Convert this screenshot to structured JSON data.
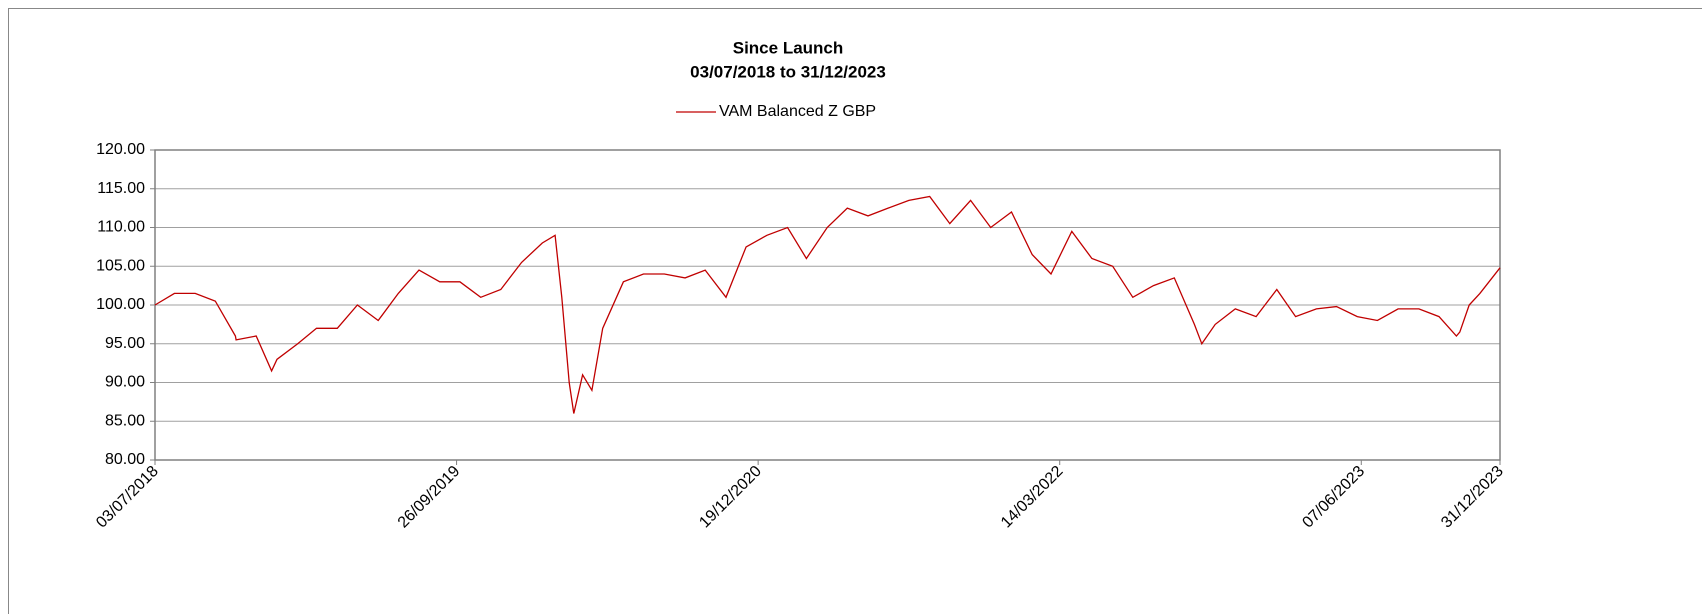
{
  "chart_data": {
    "type": "line",
    "title": "Since Launch",
    "subtitle": "03/07/2018 to 31/12/2023",
    "x": [
      "03/07/2018",
      "01/08/2018",
      "01/09/2018",
      "01/10/2018",
      "31/10/2018",
      "01/11/2018",
      "01/12/2018",
      "24/12/2018",
      "01/01/2019",
      "01/02/2019",
      "01/03/2019",
      "01/04/2019",
      "01/05/2019",
      "01/06/2019",
      "01/07/2019",
      "01/08/2019",
      "01/09/2019",
      "01/10/2019",
      "01/11/2019",
      "01/12/2019",
      "01/01/2020",
      "01/02/2020",
      "20/02/2020",
      "01/03/2020",
      "12/03/2020",
      "19/03/2020",
      "01/04/2020",
      "15/04/2020",
      "01/05/2020",
      "01/06/2020",
      "01/07/2020",
      "01/08/2020",
      "01/09/2020",
      "01/10/2020",
      "01/11/2020",
      "01/12/2020",
      "01/01/2021",
      "01/02/2021",
      "01/03/2021",
      "01/04/2021",
      "01/05/2021",
      "01/06/2021",
      "01/07/2021",
      "01/08/2021",
      "01/09/2021",
      "01/10/2021",
      "01/11/2021",
      "01/12/2021",
      "01/01/2022",
      "01/02/2022",
      "01/03/2022",
      "01/04/2022",
      "01/05/2022",
      "01/06/2022",
      "01/07/2022",
      "01/08/2022",
      "01/09/2022",
      "01/10/2022",
      "12/10/2022",
      "01/11/2022",
      "01/12/2022",
      "01/01/2023",
      "01/02/2023",
      "01/03/2023",
      "01/04/2023",
      "01/05/2023",
      "01/06/2023",
      "01/07/2023",
      "01/08/2023",
      "01/09/2023",
      "01/10/2023",
      "27/10/2023",
      "01/11/2023",
      "15/11/2023",
      "01/12/2023",
      "31/12/2023"
    ],
    "series": [
      {
        "name": "VAM Balanced Z GBP",
        "color": "#c00000",
        "values": [
          100,
          101.5,
          101.5,
          100.5,
          96,
          95.5,
          96,
          91.5,
          93,
          95,
          97,
          97,
          100,
          98,
          101.5,
          104.5,
          103,
          103,
          101,
          102,
          105.5,
          108,
          109,
          101,
          90,
          86,
          91,
          89,
          97,
          103,
          104,
          104,
          103.5,
          104.5,
          101,
          107.5,
          109,
          110,
          106,
          110,
          112.5,
          111.5,
          112.5,
          113.5,
          114,
          110.5,
          113.5,
          110,
          112,
          106.5,
          104,
          109.5,
          106,
          105,
          101,
          102.5,
          103.5,
          97.5,
          95,
          97.5,
          99.5,
          98.5,
          102,
          98.5,
          99.5,
          99.8,
          98.5,
          98,
          99.5,
          99.5,
          98.5,
          96,
          96.5,
          100,
          101.5,
          104.8
        ]
      }
    ],
    "xlim": [
      "03/07/2018",
      "31/12/2023"
    ],
    "xticks": [
      "03/07/2018",
      "26/09/2019",
      "19/12/2020",
      "14/03/2022",
      "07/06/2023",
      "31/12/2023"
    ],
    "ylim": [
      80,
      120
    ],
    "yticks": [
      {
        "value": 80,
        "label": "80.00"
      },
      {
        "value": 85,
        "label": "85.00"
      },
      {
        "value": 90,
        "label": "90.00"
      },
      {
        "value": 95,
        "label": "95.00"
      },
      {
        "value": 100,
        "label": "100.00"
      },
      {
        "value": 105,
        "label": "105.00"
      },
      {
        "value": 110,
        "label": "110.00"
      },
      {
        "value": 115,
        "label": "115.00"
      },
      {
        "value": 120,
        "label": "120.00"
      }
    ],
    "grid": true
  }
}
